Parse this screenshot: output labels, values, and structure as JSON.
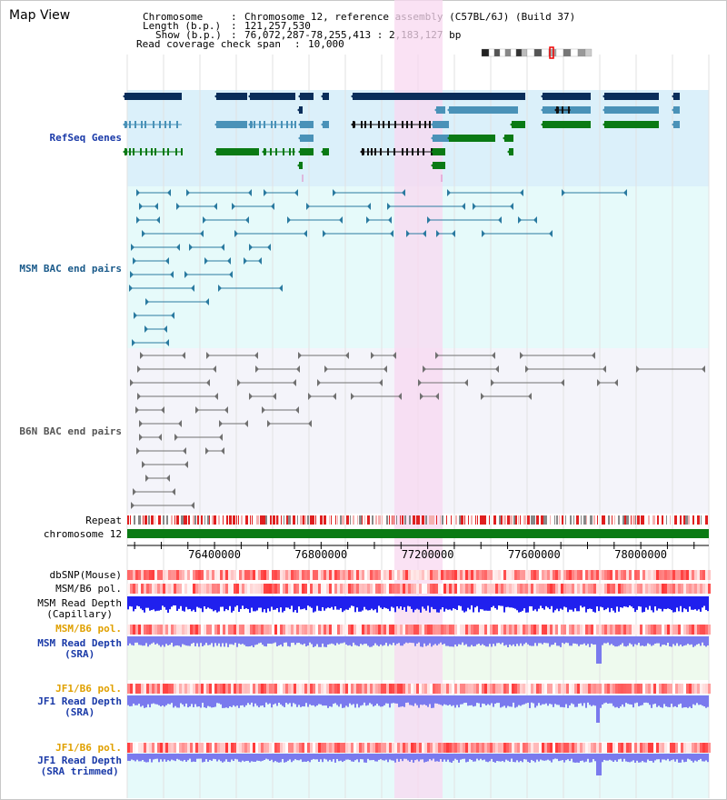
{
  "page": {
    "title": "Map View"
  },
  "info": {
    "chromosome_key": "Chromosome",
    "chromosome_val": "Chromosome 12, reference assembly (C57BL/6J) (Build 37)",
    "length_key": "Length (b.p.)",
    "length_val": "121,257,530",
    "show_key": "Show (b.p.)",
    "show_val": "76,072,287-78,255,413 : 2,183,127 bp",
    "coverage_key": "Read coverage check span",
    "coverage_val": "10,000"
  },
  "tracks": {
    "refseq": "RefSeq Genes",
    "msm_bac": "MSM BAC end pairs",
    "b6n_bac": "B6N BAC end pairs",
    "repeat": "Repeat",
    "chromosome": "chromosome 12",
    "dbsnp": "dbSNP(Mouse)",
    "msm_b6_pol_1": "MSM/B6 pol.",
    "msm_depth_cap_1": "MSM Read Depth",
    "msm_depth_cap_2": "(Capillary)",
    "msm_b6_pol_2": "MSM/B6 pol.",
    "msm_depth_sra_1": "MSM Read Depth",
    "msm_depth_sra_2": "(SRA)",
    "jf1_b6_pol_1": "JF1/B6 pol.",
    "jf1_depth_sra_1": "JF1 Read Depth",
    "jf1_depth_sra_2": "(SRA)",
    "jf1_b6_pol_2": "JF1/B6 pol.",
    "jf1_depth_trim_1": "JF1 Read Depth",
    "jf1_depth_trim_2": "(SRA trimmed)"
  },
  "ruler": {
    "ticks": [
      {
        "label": "76400000",
        "pos": 76400000
      },
      {
        "label": "76800000",
        "pos": 76800000
      },
      {
        "label": "77200000",
        "pos": 77200000
      },
      {
        "label": "77600000",
        "pos": 77600000
      },
      {
        "label": "78000000",
        "pos": 78000000
      }
    ]
  },
  "colors": {
    "refseq_bg": "#dbf0fa",
    "msm_bg": "#e6fafa",
    "b6n_bg": "#f4f4fa",
    "highlight": "#f8d8f0",
    "gene_dark": "#0a2d5a",
    "gene_mid": "#4a92b8",
    "gene_green": "#0a7a14",
    "msm_line": "#2a7aa0",
    "b6n_line": "#707070",
    "chrom_bar": "#0a7a14",
    "depth_dark": "#2020ee",
    "depth_light": "#7a7aee",
    "label_blue": "#1a3aa8",
    "label_orange": "#e0a000",
    "label_black": "#000000"
  }
}
